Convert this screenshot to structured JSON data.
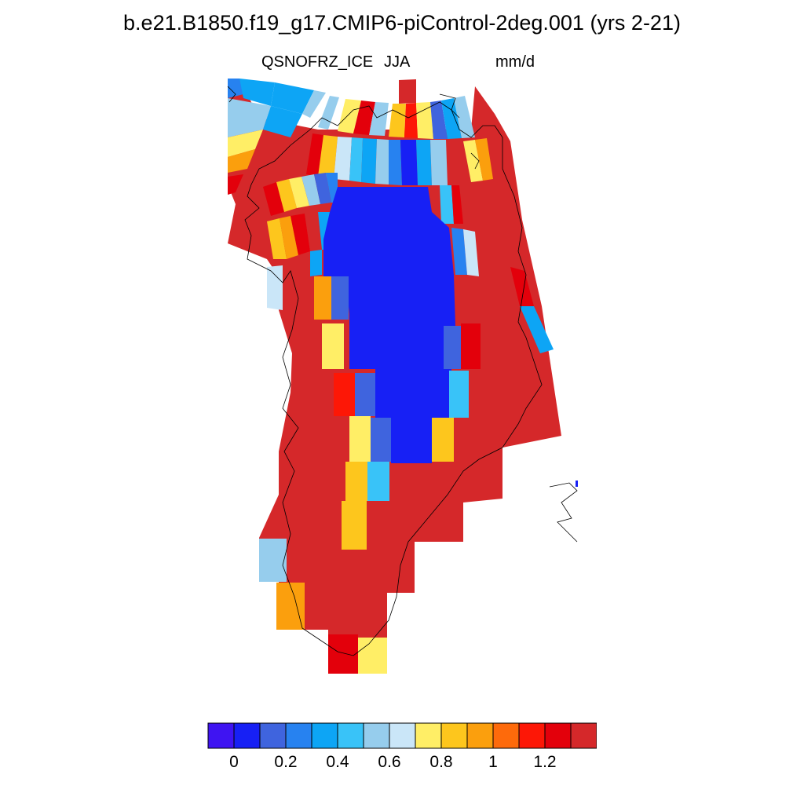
{
  "title": "b.e21.B1850.f19_g17.CMIP6-piControl-2deg.001 (yrs 2-21)",
  "left_subtitle": "QSNOFRZ_ICE",
  "center_subtitle": "JJA",
  "right_subtitle": "mm/d",
  "colors": {
    "c0": "#3f14f2",
    "c1": "#1720f5",
    "c2": "#3f64de",
    "c3": "#2782f0",
    "c4": "#0da5f5",
    "c5": "#39c3f8",
    "c6": "#96cded",
    "c7": "#cae6f8",
    "c8": "#ffee66",
    "c9": "#fdc61d",
    "c10": "#fb9f0d",
    "c11": "#fe6a0b",
    "c12": "#fd1706",
    "c13": "#e3000b",
    "c14": "#d5282a"
  },
  "colorbar": {
    "labels": [
      {
        "value": "0",
        "bin": 1
      },
      {
        "value": "0.2",
        "bin": 3
      },
      {
        "value": "0.4",
        "bin": 5
      },
      {
        "value": "0.6",
        "bin": 7
      },
      {
        "value": "0.8",
        "bin": 9
      },
      {
        "value": "1",
        "bin": 11
      },
      {
        "value": "1.2",
        "bin": 13
      }
    ]
  },
  "chart_data": {
    "type": "heatmap",
    "variable": "QSNOFRZ_ICE",
    "season": "JJA",
    "units": "mm/d",
    "region": "Greenland",
    "color_levels": [
      "<0",
      "0-0.1",
      "0.1-0.2",
      "0.2-0.3",
      "0.3-0.4",
      "0.4-0.5",
      "0.5-0.6",
      "0.6-0.7",
      "0.7-0.8",
      "0.8-0.9",
      "0.9-1.0",
      "1.0-1.1",
      "1.1-1.2",
      "1.2-1.3",
      ">1.3"
    ],
    "description_of_field": "interior ice sheet ~0-0.1 mm/d, margins >1.3 mm/d"
  }
}
